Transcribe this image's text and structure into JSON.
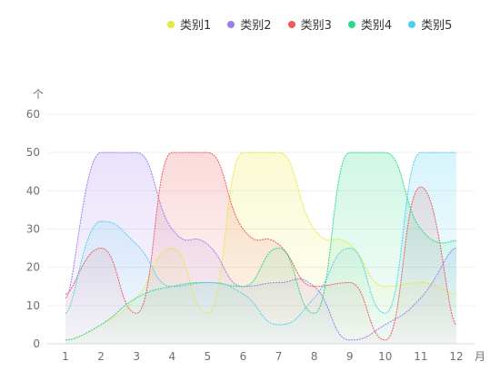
{
  "chart_data": {
    "type": "area",
    "smooth": true,
    "y_unit": "个",
    "x_unit": "月",
    "legend_position": "top-right",
    "grid": true,
    "ylim": [
      0,
      60
    ],
    "y_ticks": [
      0,
      10,
      20,
      30,
      40,
      50,
      60
    ],
    "categories": [
      "1",
      "2",
      "3",
      "4",
      "5",
      "6",
      "7",
      "8",
      "9",
      "10",
      "11",
      "12"
    ],
    "series": [
      {
        "name": "类别1",
        "color": "#e8e83a",
        "values": [
          1,
          5,
          12,
          25,
          8,
          50,
          50,
          30,
          26,
          15,
          16,
          13
        ]
      },
      {
        "name": "类别2",
        "color": "#9d7cf0",
        "values": [
          12,
          50,
          50,
          30,
          26,
          15,
          16,
          15,
          1,
          5,
          12,
          25
        ]
      },
      {
        "name": "类别3",
        "color": "#ee5a5a",
        "values": [
          13,
          25,
          8,
          50,
          50,
          30,
          26,
          15,
          16,
          1,
          41,
          5
        ]
      },
      {
        "name": "类别4",
        "color": "#2bd989",
        "values": [
          1,
          5,
          12,
          15,
          16,
          15,
          25,
          8,
          50,
          50,
          30,
          27
        ]
      },
      {
        "name": "类别5",
        "color": "#4ccfef",
        "values": [
          8,
          32,
          26,
          15,
          16,
          13,
          5,
          12,
          25,
          8,
          50,
          50
        ]
      }
    ]
  }
}
